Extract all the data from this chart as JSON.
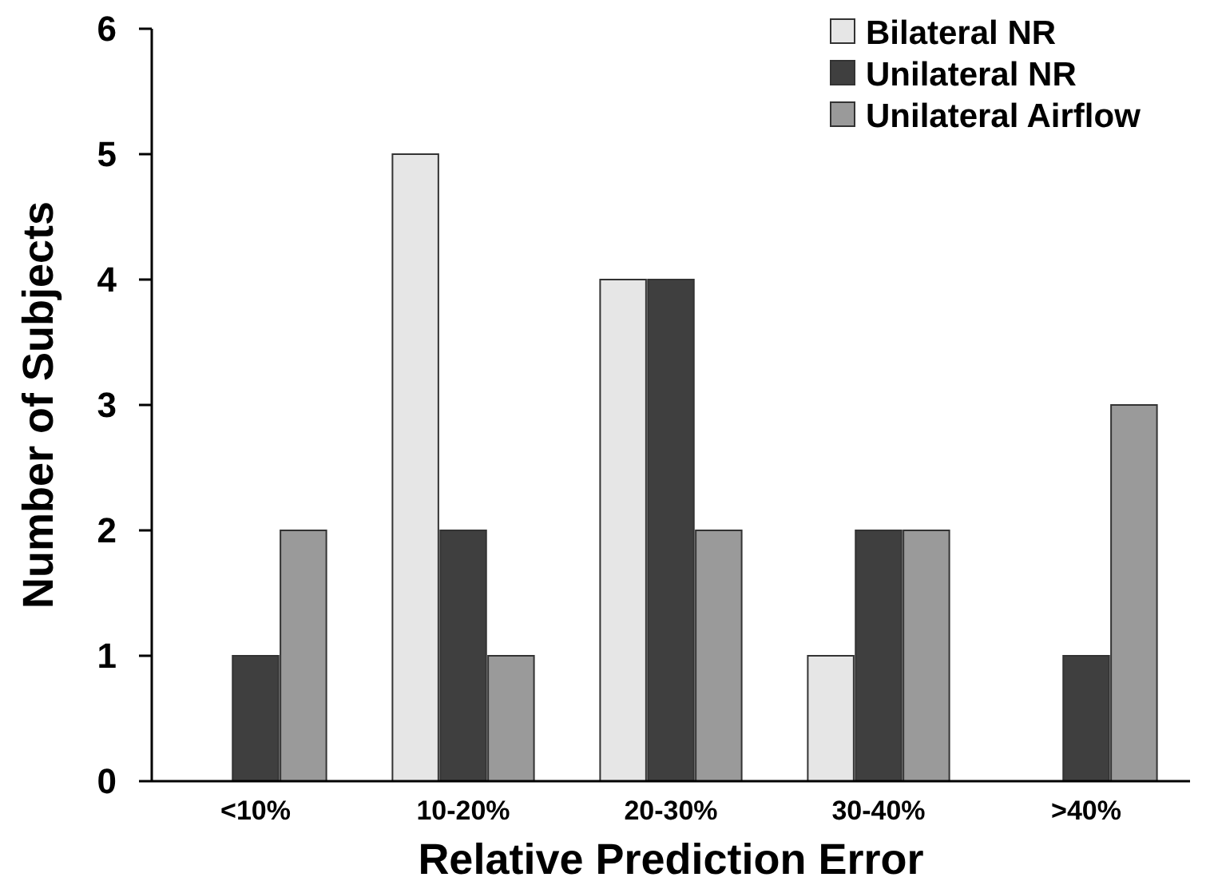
{
  "chart_data": {
    "type": "bar",
    "xlabel": "Relative Prediction Error",
    "ylabel": "Number of Subjects",
    "categories": [
      "<10%",
      "10-20%",
      "20-30%",
      "30-40%",
      ">40%"
    ],
    "series": [
      {
        "name": "Bilateral NR",
        "color": "#e6e6e6",
        "values": [
          0,
          5,
          4,
          1,
          0
        ]
      },
      {
        "name": "Unilateral NR",
        "color": "#3f3f3f",
        "values": [
          1,
          2,
          4,
          2,
          1
        ]
      },
      {
        "name": "Unilateral Airflow",
        "color": "#9a9a9a",
        "values": [
          2,
          1,
          2,
          2,
          3
        ]
      }
    ],
    "ylim": [
      0,
      6
    ],
    "yticks": [
      0,
      1,
      2,
      3,
      4,
      5,
      6
    ],
    "grid": false,
    "legend": "top right"
  }
}
